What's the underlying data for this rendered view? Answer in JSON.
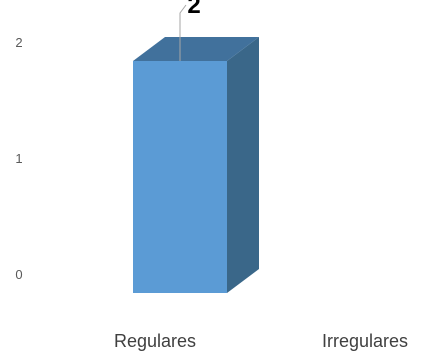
{
  "chart_data": {
    "type": "bar",
    "style": "3d-column",
    "categories": [
      "Regulares",
      "Irregulares"
    ],
    "values": [
      2,
      0
    ],
    "data_labels": [
      "2",
      ""
    ],
    "y_ticks": [
      0,
      1,
      2
    ],
    "y_tick_labels": [
      "0",
      "1",
      "2"
    ],
    "ylim": [
      0,
      2.4
    ],
    "title": "",
    "xlabel": "",
    "ylabel": "",
    "grid": false,
    "legend": "none",
    "colors": {
      "front": "#5b9bd5",
      "side": "#3a6789",
      "top": "#41719c",
      "leader_line": "#a6a6a6"
    }
  }
}
